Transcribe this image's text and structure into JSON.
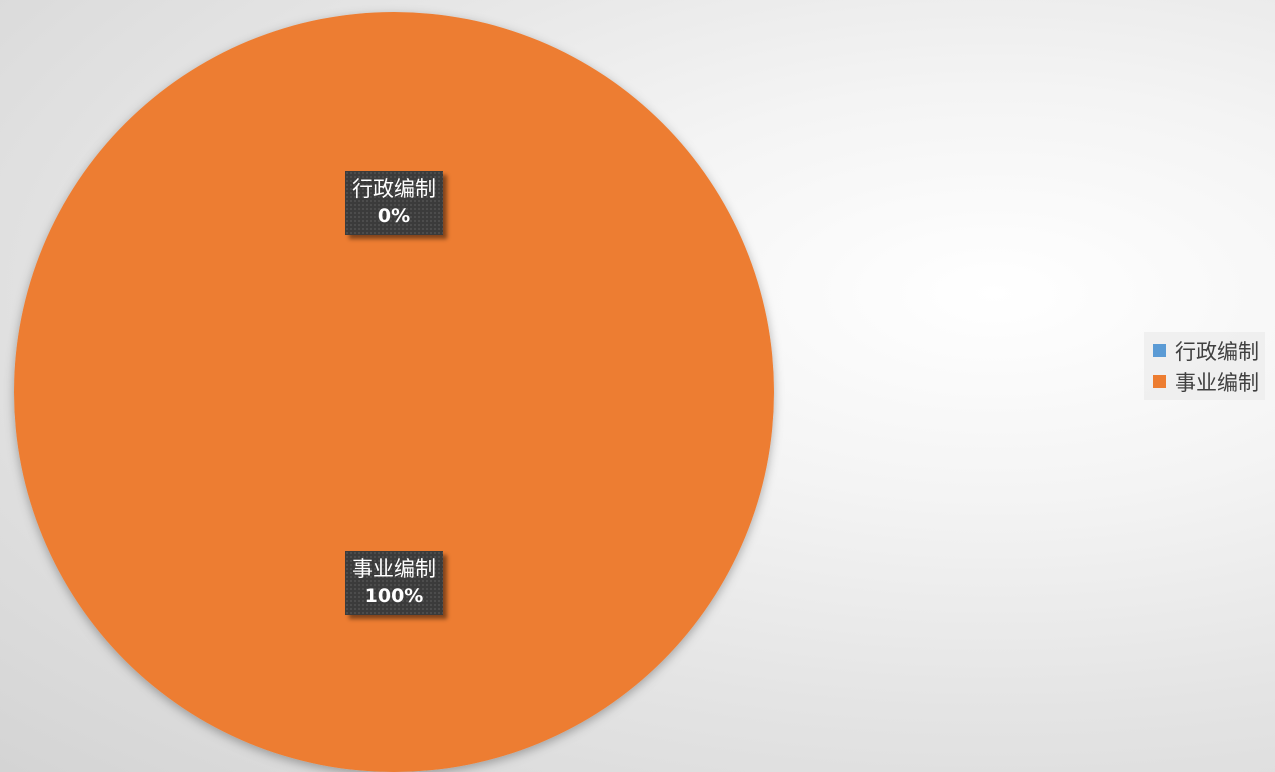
{
  "chart_data": {
    "type": "pie",
    "categories": [
      "行政编制",
      "事业编制"
    ],
    "values": [
      0,
      100
    ],
    "percent_labels": [
      "0%",
      "100%"
    ],
    "colors": [
      "#5b9bd5",
      "#ed7d31"
    ],
    "title": "",
    "legend_position": "right"
  }
}
